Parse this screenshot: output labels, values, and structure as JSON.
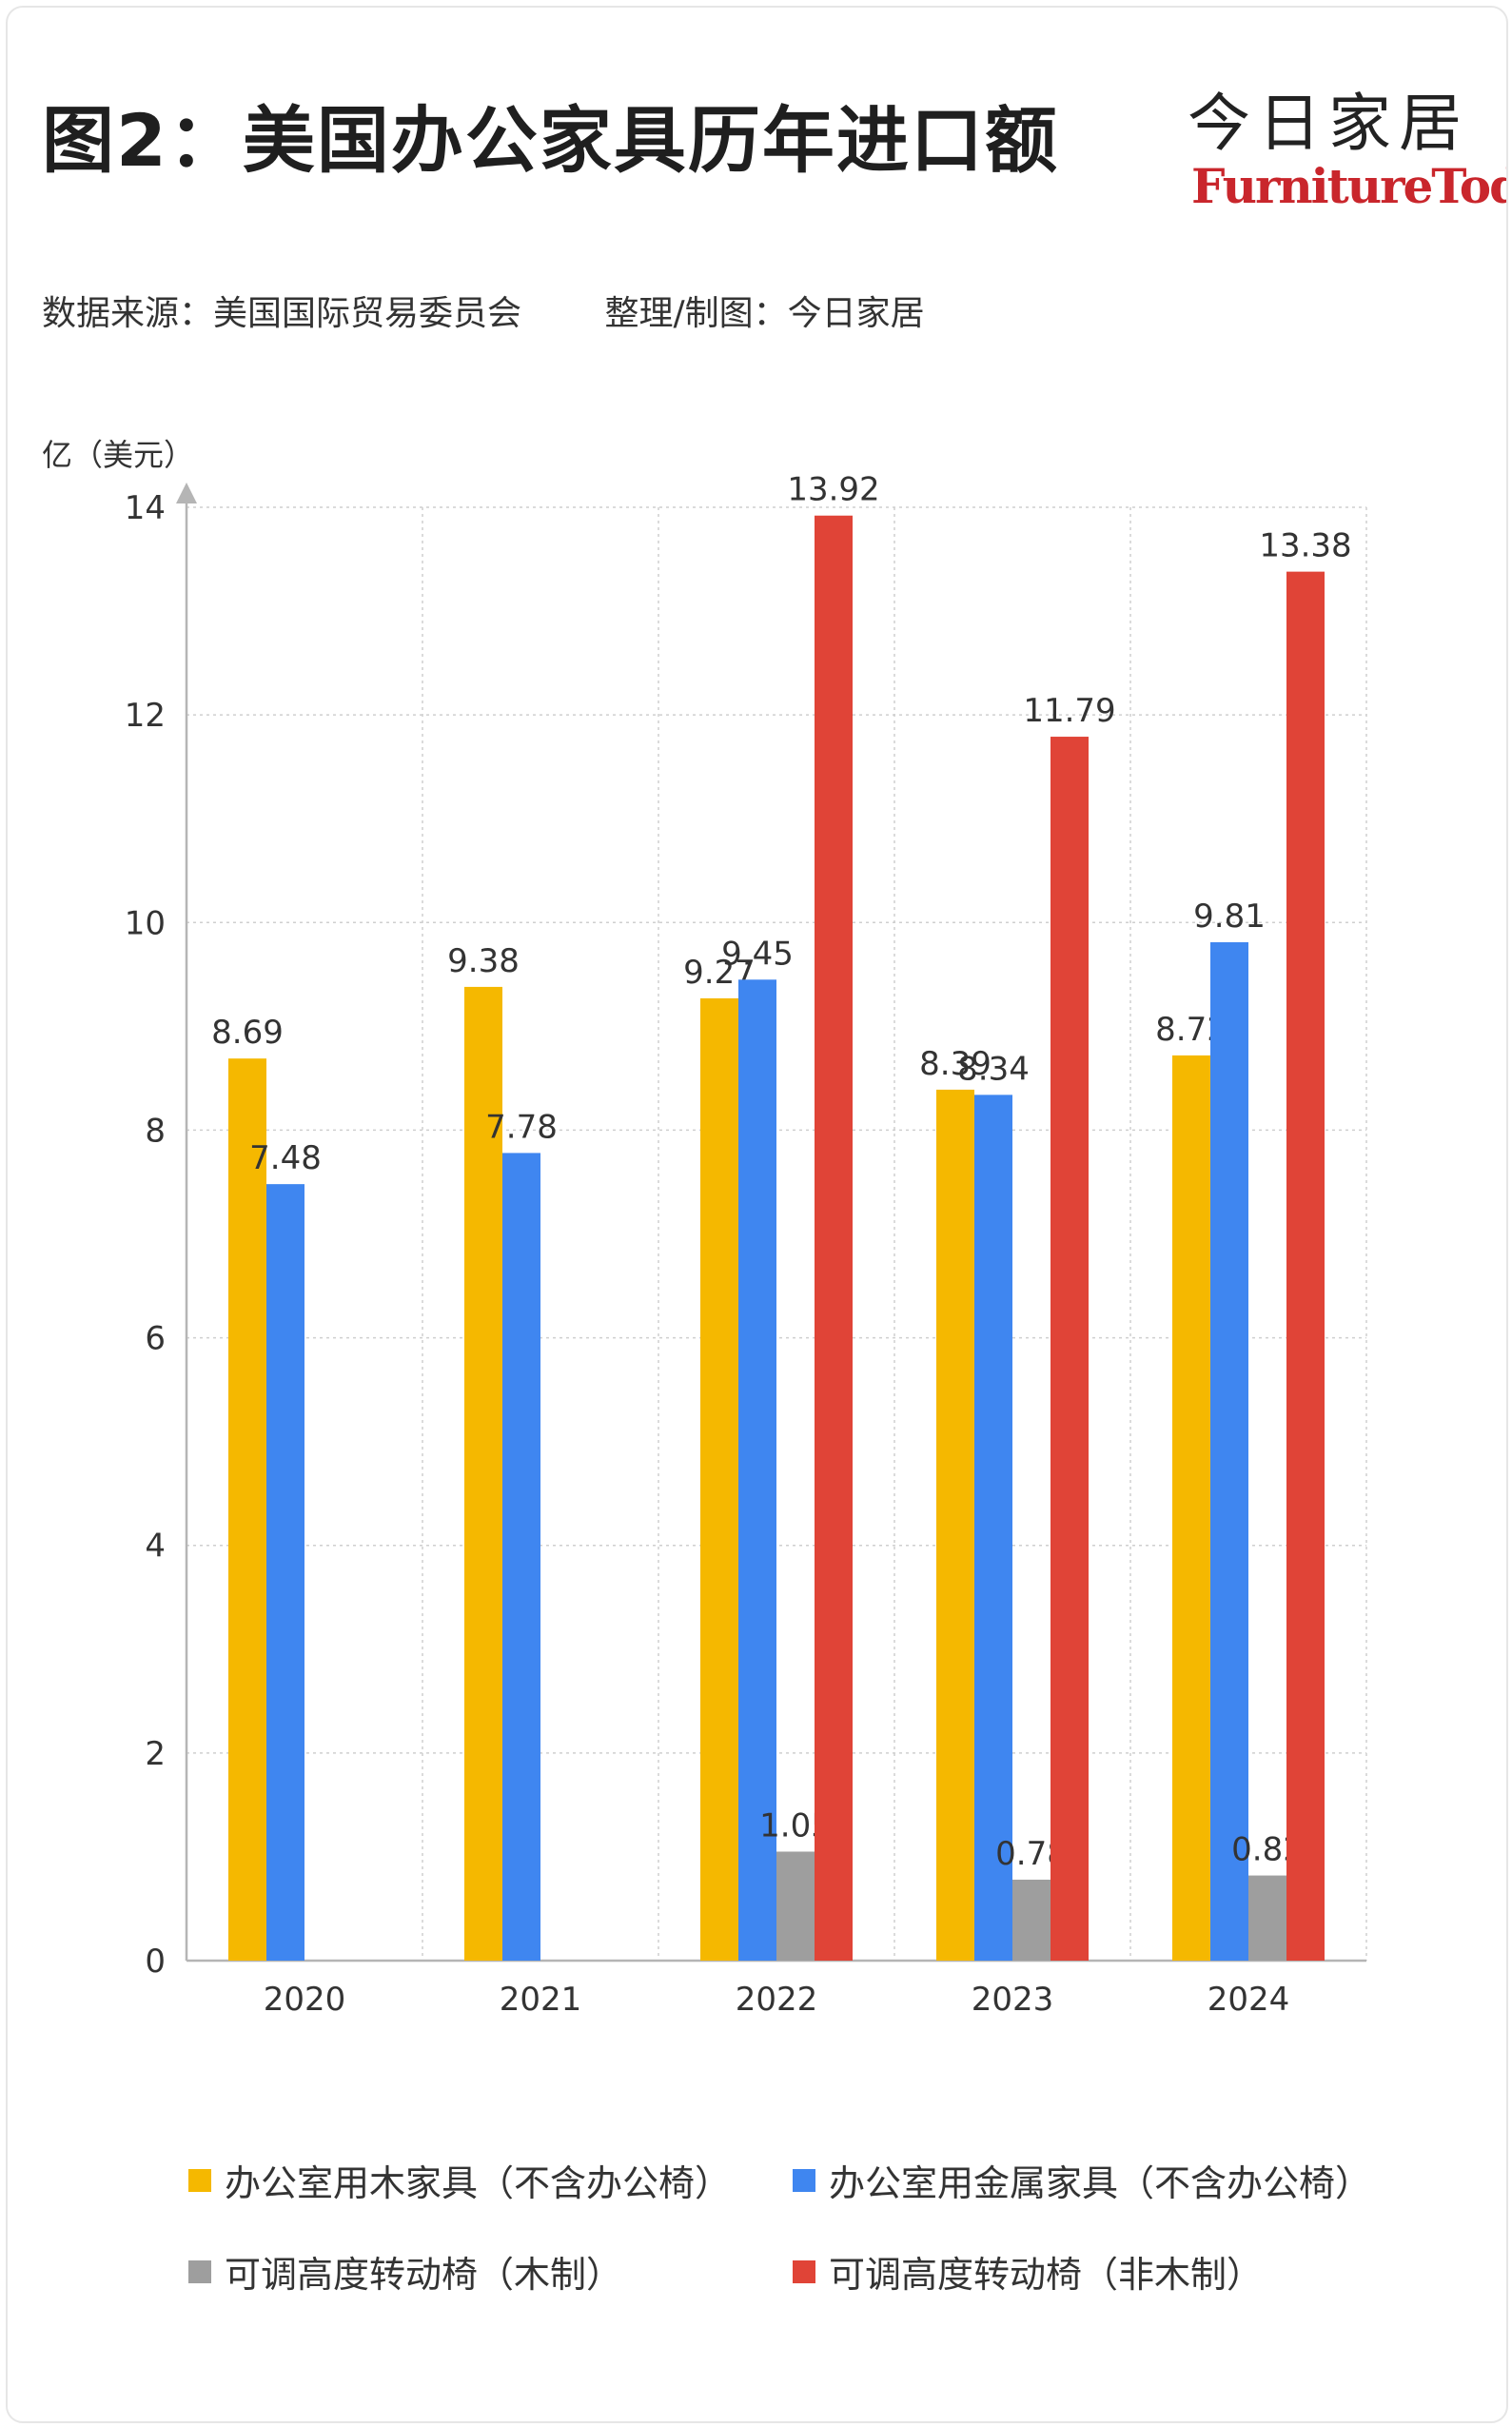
{
  "header": {
    "title": "图2：美国办公家具历年进口额",
    "logo_cn": "今日家居",
    "logo_en": "FurnitureToday",
    "source": "数据来源：美国国际贸易委员会",
    "credit": "整理/制图：今日家居"
  },
  "chart_data": {
    "type": "bar",
    "ylabel": "亿（美元）",
    "xlabel": "",
    "ylim": [
      0,
      14
    ],
    "yticks": [
      "0",
      "2",
      "4",
      "6",
      "8",
      "10",
      "12",
      "14"
    ],
    "grid": true,
    "legend_position": "bottom",
    "categories": [
      "2020",
      "2021",
      "2022",
      "2023",
      "2024"
    ],
    "series": [
      {
        "name": "办公室用木家具（不含办公椅）",
        "color": "#F5B800",
        "values": [
          8.69,
          9.38,
          9.27,
          8.39,
          8.72
        ],
        "labels": [
          "8.69",
          "9.38",
          "9.27",
          "8.39",
          "8.72"
        ]
      },
      {
        "name": "办公室用金属家具（不含办公椅）",
        "color": "#3F86F0",
        "values": [
          7.48,
          7.78,
          9.45,
          8.34,
          9.81
        ],
        "labels": [
          "7.48",
          "7.78",
          "9.45",
          "8.34",
          "9.81"
        ]
      },
      {
        "name": "可调高度转动椅（木制）",
        "color": "#9E9E9E",
        "values": [
          null,
          null,
          1.05,
          0.78,
          0.82
        ],
        "labels": [
          "",
          "",
          "1.05",
          "0.78",
          "0.82"
        ]
      },
      {
        "name": "可调高度转动椅（非木制）",
        "color": "#E04437",
        "values": [
          null,
          null,
          13.92,
          11.79,
          13.38
        ],
        "labels": [
          "",
          "",
          "13.92",
          "11.79",
          "13.38"
        ]
      }
    ]
  }
}
